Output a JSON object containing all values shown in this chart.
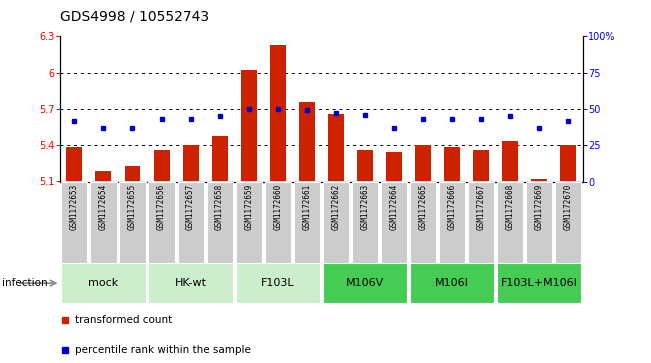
{
  "title": "GDS4998 / 10552743",
  "samples": [
    "GSM1172653",
    "GSM1172654",
    "GSM1172655",
    "GSM1172656",
    "GSM1172657",
    "GSM1172658",
    "GSM1172659",
    "GSM1172660",
    "GSM1172661",
    "GSM1172662",
    "GSM1172663",
    "GSM1172664",
    "GSM1172665",
    "GSM1172666",
    "GSM1172667",
    "GSM1172668",
    "GSM1172669",
    "GSM1172670"
  ],
  "bar_values": [
    5.385,
    5.185,
    5.23,
    5.36,
    5.405,
    5.48,
    6.02,
    6.225,
    5.755,
    5.655,
    5.36,
    5.345,
    5.4,
    5.385,
    5.36,
    5.435,
    5.12,
    5.4
  ],
  "dot_values_pct": [
    42,
    37,
    37,
    43,
    43,
    45,
    50,
    50,
    49,
    47,
    46,
    37,
    43,
    43,
    43,
    45,
    37,
    42
  ],
  "ylim_left": [
    5.1,
    6.3
  ],
  "ylim_right": [
    0,
    100
  ],
  "yticks_left": [
    5.1,
    5.4,
    5.7,
    6.0,
    6.3
  ],
  "ytick_labels_left": [
    "5.1",
    "5.4",
    "5.7",
    "6",
    "6.3"
  ],
  "yticks_right": [
    0,
    25,
    50,
    75,
    100
  ],
  "ytick_labels_right": [
    "0",
    "25",
    "50",
    "75",
    "100%"
  ],
  "hlines": [
    6.0,
    5.7,
    5.4
  ],
  "bar_color": "#cc2200",
  "dot_color": "#0000cc",
  "bar_bottom": 5.1,
  "groups": [
    {
      "label": "mock",
      "start": 0,
      "end": 2,
      "color": "#cceecc"
    },
    {
      "label": "HK-wt",
      "start": 3,
      "end": 5,
      "color": "#cceecc"
    },
    {
      "label": "F103L",
      "start": 6,
      "end": 8,
      "color": "#cceecc"
    },
    {
      "label": "M106V",
      "start": 9,
      "end": 11,
      "color": "#44cc55"
    },
    {
      "label": "M106I",
      "start": 12,
      "end": 14,
      "color": "#44cc55"
    },
    {
      "label": "F103L+M106I",
      "start": 15,
      "end": 17,
      "color": "#44cc55"
    }
  ],
  "sample_box_color": "#cccccc",
  "infection_label": "infection",
  "legend_bar_label": "transformed count",
  "legend_dot_label": "percentile rank within the sample",
  "title_fontsize": 10,
  "tick_fontsize": 7,
  "sample_fontsize": 5.5,
  "group_fontsize": 8,
  "legend_fontsize": 7.5
}
